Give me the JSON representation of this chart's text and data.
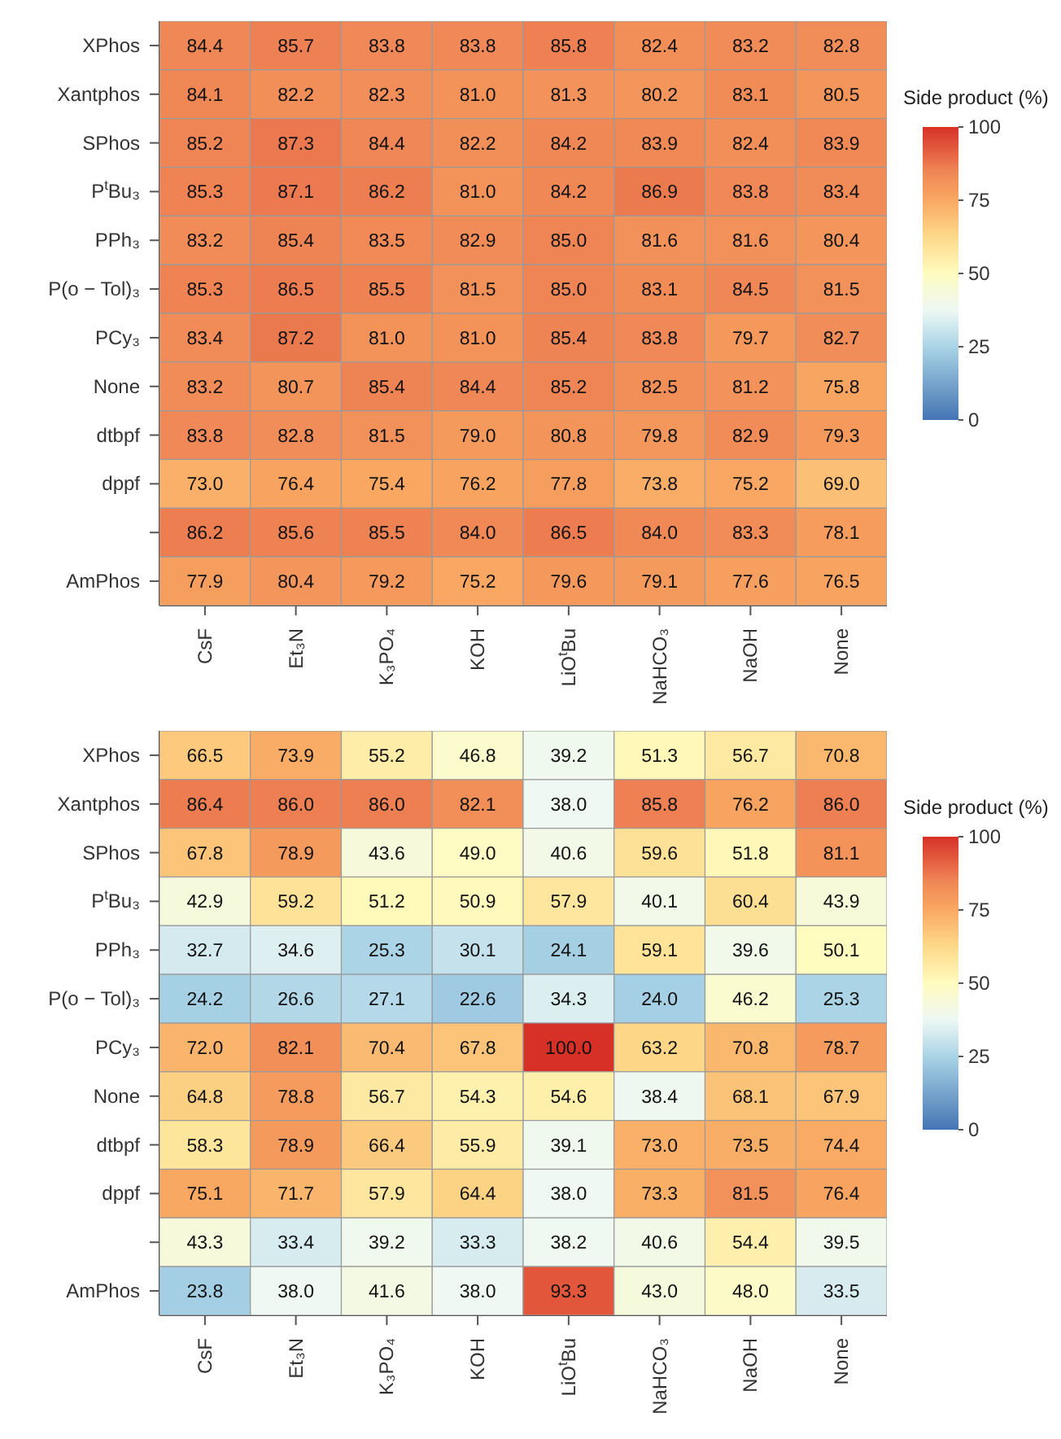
{
  "chart_data": [
    {
      "type": "heatmap",
      "categories": [
        "CsF",
        "Et₃N",
        "K₃PO₄",
        "KOH",
        "LiO$^{t}$Bu",
        "NaHCO₃",
        "NaOH",
        "None"
      ],
      "y_categories": [
        "XPhos",
        "Xantphos",
        "SPhos",
        "P$^{t}$Bu₃",
        "PPh₃",
        "P(o − Tol)₃",
        "PCy₃",
        "None",
        "dtbpf",
        "dppf",
        null,
        "AmPhos"
      ],
      "cells": [
        [
          84.4,
          85.7,
          83.8,
          83.8,
          85.8,
          82.4,
          83.2,
          82.8
        ],
        [
          84.1,
          82.2,
          82.3,
          81.0,
          81.3,
          80.2,
          83.1,
          80.5
        ],
        [
          85.2,
          87.3,
          84.4,
          82.2,
          84.2,
          83.9,
          82.4,
          83.9
        ],
        [
          85.3,
          87.1,
          86.2,
          81.0,
          84.2,
          86.9,
          83.8,
          83.4
        ],
        [
          83.2,
          85.4,
          83.5,
          82.9,
          85.0,
          81.6,
          81.6,
          80.4
        ],
        [
          85.3,
          86.5,
          85.5,
          81.5,
          85.0,
          83.1,
          84.5,
          81.5
        ],
        [
          83.4,
          87.2,
          81.0,
          81.0,
          85.4,
          83.8,
          79.7,
          82.7
        ],
        [
          83.2,
          80.7,
          85.4,
          84.4,
          85.2,
          82.5,
          81.2,
          75.8
        ],
        [
          83.8,
          82.8,
          81.5,
          79.0,
          80.8,
          79.8,
          82.9,
          79.3
        ],
        [
          73.0,
          76.4,
          75.4,
          76.2,
          77.8,
          73.8,
          75.2,
          69.0
        ],
        [
          86.2,
          85.6,
          85.5,
          84.0,
          86.5,
          84.0,
          83.3,
          78.1
        ],
        [
          77.9,
          80.4,
          79.2,
          75.2,
          79.6,
          79.1,
          77.6,
          76.5
        ]
      ],
      "cell_labels": [
        [
          "84.4",
          "85.7",
          "83.8",
          "83.8",
          "85.8",
          "82.4",
          "83.2",
          "82.8"
        ],
        [
          "84.1",
          "82.2",
          "82.3",
          "81.0",
          "81.3",
          "80.2",
          "83.1",
          "80.5"
        ],
        [
          "85.2",
          "87.3",
          "84.4",
          "82.2",
          "84.2",
          "83.9",
          "82.4",
          "83.9"
        ],
        [
          "85.3",
          "87.1",
          "86.2",
          "81.0",
          "84.2",
          "86.9",
          "83.8",
          "83.4"
        ],
        [
          "83.2",
          "85.4",
          "83.5",
          "82.9",
          "85.0",
          "81.6",
          "81.6",
          "80.4"
        ],
        [
          "85.3",
          "86.5",
          "85.5",
          "81.5",
          "85.0",
          "83.1",
          "84.5",
          "81.5"
        ],
        [
          "83.4",
          "87.2",
          "81.0",
          "81.0",
          "85.4",
          "83.8",
          "79.7",
          "82.7"
        ],
        [
          "83.2",
          "80.7",
          "85.4",
          "84.4",
          "85.2",
          "82.5",
          "81.2",
          "75.8"
        ],
        [
          "83.8",
          "82.8",
          "81.5",
          "79.0",
          "80.8",
          "79.8",
          "82.9",
          "79.3"
        ],
        [
          "73.0",
          "76.4",
          "75.4",
          "76.2",
          "77.8",
          "73.8",
          "75.2",
          "69.0"
        ],
        [
          "86.2",
          "85.6",
          "85.5",
          "84.0",
          "86.5",
          "84.0",
          "83.3",
          "78.1"
        ],
        [
          "77.9",
          "80.4",
          "79.2",
          "75.2",
          "79.6",
          "79.1",
          "77.6",
          "76.5"
        ]
      ],
      "clabel": "Side product (%)",
      "clim": [
        0,
        100
      ],
      "cticks": [
        0,
        25,
        50,
        75,
        100
      ]
    },
    {
      "type": "heatmap",
      "categories": [
        "CsF",
        "Et₃N",
        "K₃PO₄",
        "KOH",
        "LiO$^{t}$Bu",
        "NaHCO₃",
        "NaOH",
        "None"
      ],
      "y_categories": [
        "XPhos",
        "Xantphos",
        "SPhos",
        "P$^{t}$Bu₃",
        "PPh₃",
        "P(o − Tol)₃",
        "PCy₃",
        "None",
        "dtbpf",
        "dppf",
        null,
        "AmPhos"
      ],
      "cells": [
        [
          66.5,
          73.9,
          55.2,
          46.8,
          39.2,
          51.3,
          56.7,
          70.8
        ],
        [
          86.4,
          86.0,
          86.0,
          82.1,
          38.0,
          85.8,
          76.2,
          86.0
        ],
        [
          67.8,
          78.9,
          43.6,
          49.0,
          40.6,
          59.6,
          51.8,
          81.1
        ],
        [
          42.9,
          59.2,
          51.2,
          50.9,
          57.9,
          40.1,
          60.4,
          43.9
        ],
        [
          32.7,
          34.6,
          25.3,
          30.1,
          24.1,
          59.1,
          39.6,
          50.1
        ],
        [
          24.2,
          26.6,
          27.1,
          22.6,
          34.3,
          24.0,
          46.2,
          25.3
        ],
        [
          72.0,
          82.1,
          70.4,
          67.8,
          100.0,
          63.2,
          70.8,
          78.7
        ],
        [
          64.8,
          78.8,
          56.7,
          54.3,
          54.6,
          38.4,
          68.1,
          67.9
        ],
        [
          58.3,
          78.9,
          66.4,
          55.9,
          39.1,
          73.0,
          73.5,
          74.4
        ],
        [
          75.1,
          71.7,
          57.9,
          64.4,
          38.0,
          73.3,
          81.5,
          76.4
        ],
        [
          43.3,
          33.4,
          39.2,
          33.3,
          38.2,
          40.6,
          54.4,
          39.5
        ],
        [
          23.8,
          38.0,
          41.6,
          38.0,
          93.3,
          43.0,
          48.0,
          33.5
        ]
      ],
      "cell_labels": [
        [
          "66.5",
          "73.9",
          "55.2",
          "46.8",
          "39.2",
          "51.3",
          "56.7",
          "70.8"
        ],
        [
          "86.4",
          "86.0",
          "86.0",
          "82.1",
          "38.0",
          "85.8",
          "76.2",
          "86.0"
        ],
        [
          "67.8",
          "78.9",
          "43.6",
          "49.0",
          "40.6",
          "59.6",
          "51.8",
          "81.1"
        ],
        [
          "42.9",
          "59.2",
          "51.2",
          "50.9",
          "57.9",
          "40.1",
          "60.4",
          "43.9"
        ],
        [
          "32.7",
          "34.6",
          "25.3",
          "30.1",
          "24.1",
          "59.1",
          "39.6",
          "50.1"
        ],
        [
          "24.2",
          "26.6",
          "27.1",
          "22.6",
          "34.3",
          "24.0",
          "46.2",
          "25.3"
        ],
        [
          "72.0",
          "82.1",
          "70.4",
          "67.8",
          "100.0",
          "63.2",
          "70.8",
          "78.7"
        ],
        [
          "64.8",
          "78.8",
          "56.7",
          "54.3",
          "54.6",
          "38.4",
          "68.1",
          "67.9"
        ],
        [
          "58.3",
          "78.9",
          "66.4",
          "55.9",
          "39.1",
          "73.0",
          "73.5",
          "74.4"
        ],
        [
          "75.1",
          "71.7",
          "57.9",
          "64.4",
          "38.0",
          "73.3",
          "81.5",
          "76.4"
        ],
        [
          "43.3",
          "33.4",
          "39.2",
          "33.3",
          "38.2",
          "40.6",
          "54.4",
          "39.5"
        ],
        [
          "23.8",
          "38.0",
          "41.6",
          "38.0",
          "93.3",
          "43.0",
          "48.0",
          "33.5"
        ]
      ],
      "clabel": "Side product (%)",
      "clim": [
        0,
        100
      ],
      "cticks": [
        0,
        25,
        50,
        75,
        100
      ]
    }
  ]
}
